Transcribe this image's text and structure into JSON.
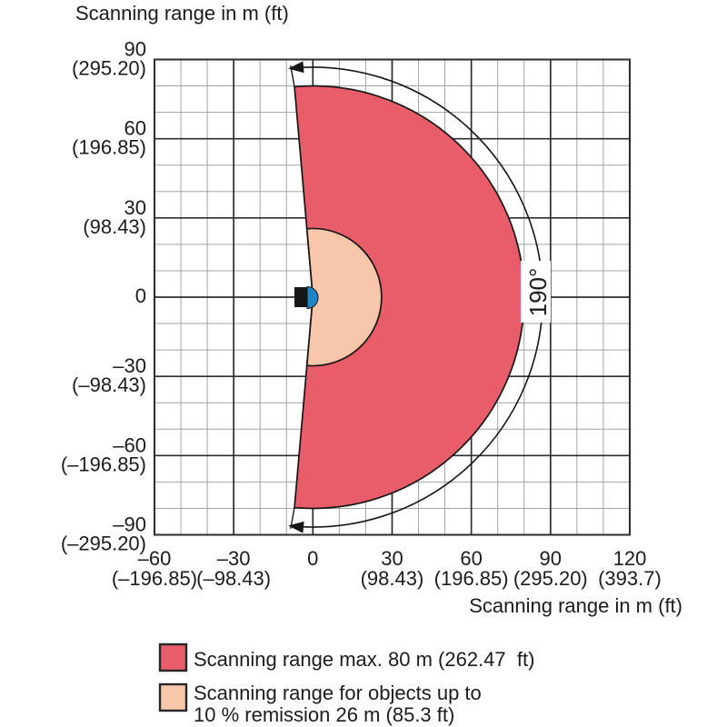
{
  "titles": {
    "top": "Scanning range in m (ft)",
    "bottom": "Scanning range in m (ft)"
  },
  "angle_label": "190°",
  "y_ticks": [
    {
      "v": 90,
      "m": "90",
      "ft": "(295.20)"
    },
    {
      "v": 60,
      "m": "60",
      "ft": "(196.85)"
    },
    {
      "v": 30,
      "m": "30",
      "ft": "(98.43)"
    },
    {
      "v": 0,
      "m": "0",
      "ft": ""
    },
    {
      "v": -30,
      "m": "–30",
      "ft": "(–98.43)"
    },
    {
      "v": -60,
      "m": "–60",
      "ft": "(–196.85)"
    },
    {
      "v": -90,
      "m": "–90",
      "ft": "(–295.20)"
    }
  ],
  "x_ticks": [
    {
      "v": -60,
      "m": "–60",
      "ft": "(–196.85)"
    },
    {
      "v": -30,
      "m": "–30",
      "ft": "(–98.43)"
    },
    {
      "v": 0,
      "m": "0",
      "ft": ""
    },
    {
      "v": 30,
      "m": "30",
      "ft": "(98.43)"
    },
    {
      "v": 60,
      "m": "60",
      "ft": "(196.85)"
    },
    {
      "v": 90,
      "m": "90",
      "ft": "(295.20)"
    },
    {
      "v": 120,
      "m": "120",
      "ft": "(393.7)"
    }
  ],
  "legend": {
    "items": [
      {
        "color": "#e95c69",
        "lines": [
          "Scanning range max. 80 m (262.47  ft)"
        ]
      },
      {
        "color": "#f8c6a8",
        "lines": [
          "Scanning range for objects up to",
          "10 % remission 26 m (85.3 ft)"
        ]
      }
    ]
  },
  "colors": {
    "scan_red": "#e95c69",
    "remission_pink": "#f8c6a8",
    "sensor_blue": "#1d86c8",
    "outline": "#161616",
    "grid_minor": "#a3a3a3",
    "grid_major": "#2d2d2d",
    "text": "#1c1c1c"
  },
  "chart_data": {
    "type": "area",
    "subtype": "polar-sector-scanning-range-diagram",
    "title": "Scanning range in m (ft)",
    "xlabel": "Scanning range in m (ft)",
    "ylabel": "Scanning range in m (ft)",
    "xlim": [
      -60,
      120
    ],
    "ylim": [
      -90,
      90
    ],
    "grid": true,
    "grid_minor_step_m": 10,
    "grid_major_step_m": 30,
    "x_tick_values_m": [
      -60,
      -30,
      0,
      30,
      60,
      90,
      120
    ],
    "x_tick_values_ft": [
      -196.85,
      -98.43,
      0,
      98.43,
      196.85,
      295.2,
      393.7
    ],
    "y_tick_values_m": [
      90,
      60,
      30,
      0,
      -30,
      -60,
      -90
    ],
    "y_tick_values_ft": [
      295.2,
      196.85,
      98.43,
      0,
      -98.43,
      -196.85,
      -295.2
    ],
    "sensor_origin_m": [
      0,
      0
    ],
    "scan_angle_deg": 190,
    "series": [
      {
        "name": "Scanning range max. 80 m (262.47 ft)",
        "radius_m": 80,
        "radius_ft": 262.47,
        "sweep_deg": 190,
        "color": "#e95c69"
      },
      {
        "name": "Scanning range for objects up to 10 % remission 26 m (85.3 ft)",
        "radius_m": 26,
        "radius_ft": 85.3,
        "sweep_deg": 190,
        "color": "#f8c6a8"
      }
    ],
    "legend_position": "bottom",
    "annotations": [
      {
        "type": "angle-arc-with-arrows",
        "text": "190°",
        "text_rotation_deg": -90
      }
    ]
  }
}
